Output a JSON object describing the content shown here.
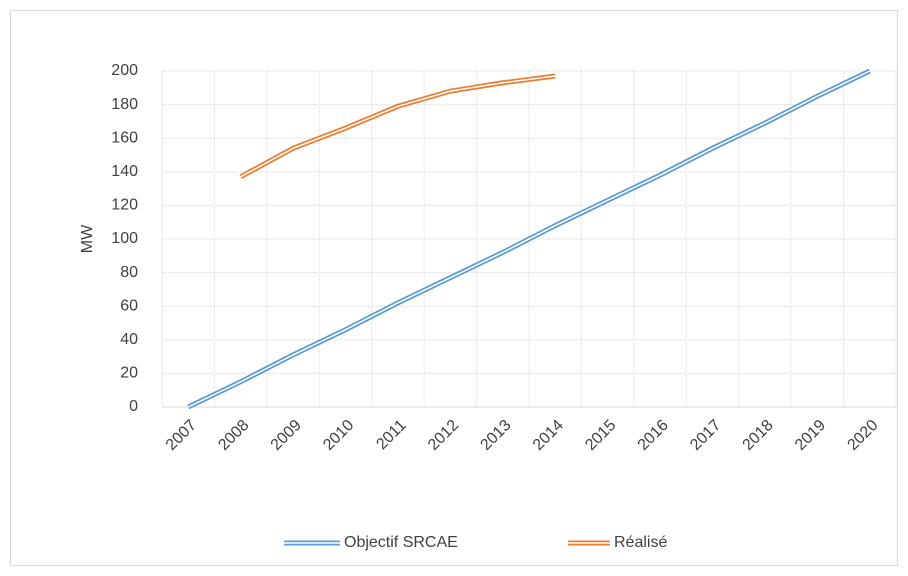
{
  "chart_data": {
    "type": "line",
    "y_label": "MW",
    "categories": [
      "2007",
      "2008",
      "2009",
      "2010",
      "2011",
      "2012",
      "2013",
      "2014",
      "2015",
      "2016",
      "2017",
      "2018",
      "2019",
      "2020"
    ],
    "series": [
      {
        "name": "Objectif SRCAE",
        "color": "#5b9bd5",
        "values": [
          0,
          15,
          31,
          46,
          62,
          77,
          92,
          108,
          123,
          138,
          154,
          169,
          185,
          200
        ]
      },
      {
        "name": "Réalisé",
        "color": "#ed7d31",
        "values": [
          null,
          137,
          154,
          166,
          179,
          188,
          193,
          197,
          null,
          null,
          null,
          null,
          null,
          null
        ]
      }
    ],
    "ylim": [
      0,
      200
    ],
    "yticks": [
      0,
      20,
      40,
      60,
      80,
      100,
      120,
      140,
      160,
      180,
      200
    ],
    "grid": true,
    "legend": "bottom"
  }
}
